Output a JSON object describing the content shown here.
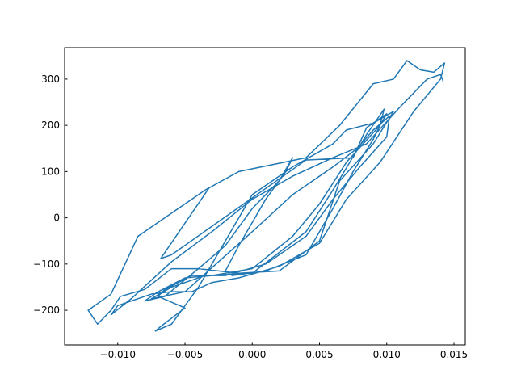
{
  "chart_data": {
    "type": "line",
    "x": [
      -0.0032,
      -0.0068,
      -0.006,
      0.004,
      0.0075,
      0.0085,
      0.01,
      0.0095,
      0.007,
      0.005,
      0.003,
      0.0,
      -0.003,
      -0.005,
      -0.007,
      -0.008,
      -0.0065,
      -0.004,
      -0.002,
      0.0,
      0.002,
      0.003,
      0.0025,
      0.001,
      -0.001,
      -0.002,
      -0.0015,
      0.001,
      0.004,
      0.006,
      0.0075,
      0.009,
      0.0095,
      0.0098,
      0.0085,
      0.006,
      0.004,
      0.0,
      -0.0035,
      -0.006,
      -0.0075,
      -0.005,
      -0.0025,
      0.0,
      0.003,
      0.006,
      0.0078,
      0.009,
      0.0102,
      0.01,
      0.008,
      0.006,
      0.004,
      0.001,
      -0.002,
      -0.0045,
      -0.0065,
      -0.007,
      -0.005,
      -0.0068,
      -0.0072,
      -0.006,
      -0.004,
      -0.002,
      0.0,
      0.003,
      0.006,
      0.007,
      0.009,
      0.0105,
      0.009,
      0.0065,
      0.005,
      0.002,
      -0.001,
      -0.004,
      -0.006,
      -0.008,
      -0.0098,
      -0.0105,
      -0.0115,
      -0.0122,
      -0.0105,
      -0.0085,
      -0.0055,
      -0.0035,
      -0.001,
      0.004,
      0.0065,
      0.009,
      0.0105,
      0.0115,
      0.0125,
      0.0135,
      0.0143,
      0.014,
      0.012,
      0.0095,
      0.007,
      0.005,
      0.002,
      -0.001,
      -0.003,
      -0.0045,
      -0.006,
      -0.0075,
      -0.01,
      -0.0105,
      -0.009,
      -0.006,
      -0.003,
      0.0,
      0.003,
      0.006,
      0.0085,
      0.011,
      0.013,
      0.014,
      0.0142
    ],
    "series": [
      {
        "color": "#1f77b4",
        "values": [
          65,
          -88,
          -80,
          125,
          130,
          195,
          225,
          200,
          120,
          30,
          -40,
          -110,
          -125,
          -130,
          -160,
          -180,
          -170,
          -110,
          -60,
          20,
          80,
          130,
          100,
          40,
          -60,
          -115,
          -125,
          -115,
          -80,
          20,
          100,
          170,
          200,
          235,
          180,
          60,
          -30,
          -120,
          -125,
          -150,
          -175,
          -160,
          -95,
          -30,
          50,
          110,
          150,
          190,
          220,
          175,
          110,
          40,
          -40,
          -100,
          -125,
          -125,
          -155,
          -170,
          -195,
          -235,
          -245,
          -230,
          -150,
          -50,
          50,
          110,
          160,
          190,
          205,
          230,
          160,
          80,
          -50,
          -115,
          -120,
          -110,
          -110,
          -155,
          -170,
          -200,
          -230,
          -200,
          -165,
          -40,
          20,
          60,
          100,
          130,
          200,
          290,
          300,
          340,
          320,
          315,
          335,
          300,
          230,
          120,
          40,
          -55,
          -105,
          -130,
          -140,
          -160,
          -160,
          -165,
          -190,
          -210,
          -175,
          -95,
          -30,
          40,
          90,
          130,
          160,
          240,
          300,
          310,
          295
        ]
      }
    ],
    "xlim": [
      -0.01395,
      0.01584
    ],
    "ylim": [
      -275,
      368
    ],
    "xticks": [
      {
        "value": -0.01,
        "label": "−0.010"
      },
      {
        "value": -0.005,
        "label": "−0.005"
      },
      {
        "value": 0.0,
        "label": "0.000"
      },
      {
        "value": 0.005,
        "label": "0.005"
      },
      {
        "value": 0.01,
        "label": "0.010"
      },
      {
        "value": 0.015,
        "label": "0.015"
      }
    ],
    "yticks": [
      {
        "value": -200,
        "label": "−200"
      },
      {
        "value": -100,
        "label": "−100"
      },
      0,
      100,
      200,
      300
    ],
    "grid": false
  }
}
